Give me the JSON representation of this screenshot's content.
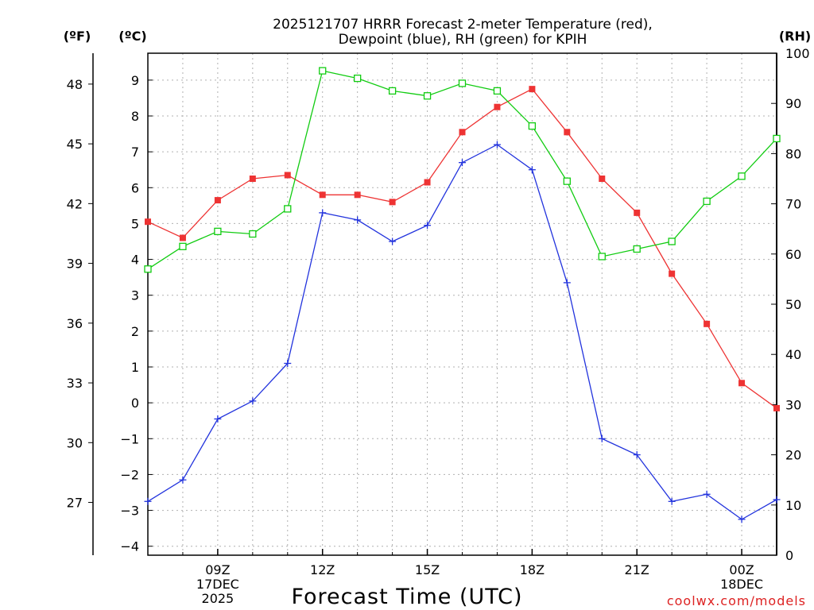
{
  "chart_data": {
    "type": "line",
    "title_line1": "2025121707 HRRR Forecast 2-meter Temperature (red),",
    "title_line2": "Dewpoint (blue), RH (green) for KPIH",
    "xlabel": "Forecast Time (UTC)",
    "left_outer_unit": "(ºF)",
    "left_inner_unit": "(ºC)",
    "right_unit": "(RH)",
    "credit": "coolwx.com/models",
    "x_hours": [
      7,
      8,
      9,
      10,
      11,
      12,
      13,
      14,
      15,
      16,
      17,
      18,
      19,
      20,
      21,
      22,
      23,
      24,
      25
    ],
    "x_range": [
      7,
      25
    ],
    "x_ticks": [
      {
        "hour": 9,
        "lines": [
          "09Z",
          "17DEC",
          "2025"
        ]
      },
      {
        "hour": 12,
        "lines": [
          "12Z"
        ]
      },
      {
        "hour": 15,
        "lines": [
          "15Z"
        ]
      },
      {
        "hour": 18,
        "lines": [
          "18Z"
        ]
      },
      {
        "hour": 21,
        "lines": [
          "21Z"
        ]
      },
      {
        "hour": 24,
        "lines": [
          "00Z",
          "18DEC"
        ]
      }
    ],
    "y_celsius_range": [
      -4.25,
      9.75
    ],
    "y_celsius_ticks": [
      -4,
      -3,
      -2,
      -1,
      0,
      1,
      2,
      3,
      4,
      5,
      6,
      7,
      8,
      9
    ],
    "y_celsius_tick_labels": [
      "−4",
      "−3",
      "−2",
      "−1",
      "0",
      "1",
      "2",
      "3",
      "4",
      "5",
      "6",
      "7",
      "8",
      "9"
    ],
    "y_fahrenheit_ticks": [
      27,
      30,
      33,
      36,
      39,
      42,
      45,
      48
    ],
    "y_fahrenheit_tick_labels": [
      "27",
      "30",
      "33",
      "36",
      "39",
      "42",
      "45",
      "48"
    ],
    "y_rh_range": [
      0,
      100
    ],
    "y_rh_ticks": [
      0,
      10,
      20,
      30,
      40,
      50,
      60,
      70,
      80,
      90,
      100
    ],
    "y_rh_tick_labels": [
      "0",
      "10",
      "20",
      "30",
      "40",
      "50",
      "60",
      "70",
      "80",
      "90",
      "100"
    ],
    "series": [
      {
        "name": "Temperature",
        "unit": "C",
        "color": "#ee3333",
        "marker": "filled-square",
        "values": [
          5.05,
          4.6,
          5.65,
          6.25,
          6.35,
          5.8,
          5.8,
          5.6,
          6.15,
          7.55,
          8.25,
          8.75,
          7.55,
          6.25,
          5.3,
          3.6,
          2.2,
          0.55,
          -0.15
        ]
      },
      {
        "name": "Dewpoint",
        "unit": "C",
        "color": "#2233dd",
        "marker": "plus",
        "values": [
          -2.75,
          -2.15,
          -0.45,
          0.05,
          1.1,
          5.3,
          5.1,
          4.5,
          4.95,
          6.7,
          7.2,
          6.5,
          3.35,
          -1.0,
          -1.45,
          -2.75,
          -2.55,
          -3.25,
          -2.7
        ]
      },
      {
        "name": "RH",
        "unit": "%",
        "color": "#11cc11",
        "marker": "open-square",
        "values": [
          57,
          61.5,
          64.5,
          64,
          69,
          96.5,
          95,
          92.5,
          91.5,
          94,
          92.5,
          85.5,
          74.5,
          59.5,
          61,
          62.5,
          70.5,
          75.5,
          83
        ]
      }
    ]
  }
}
